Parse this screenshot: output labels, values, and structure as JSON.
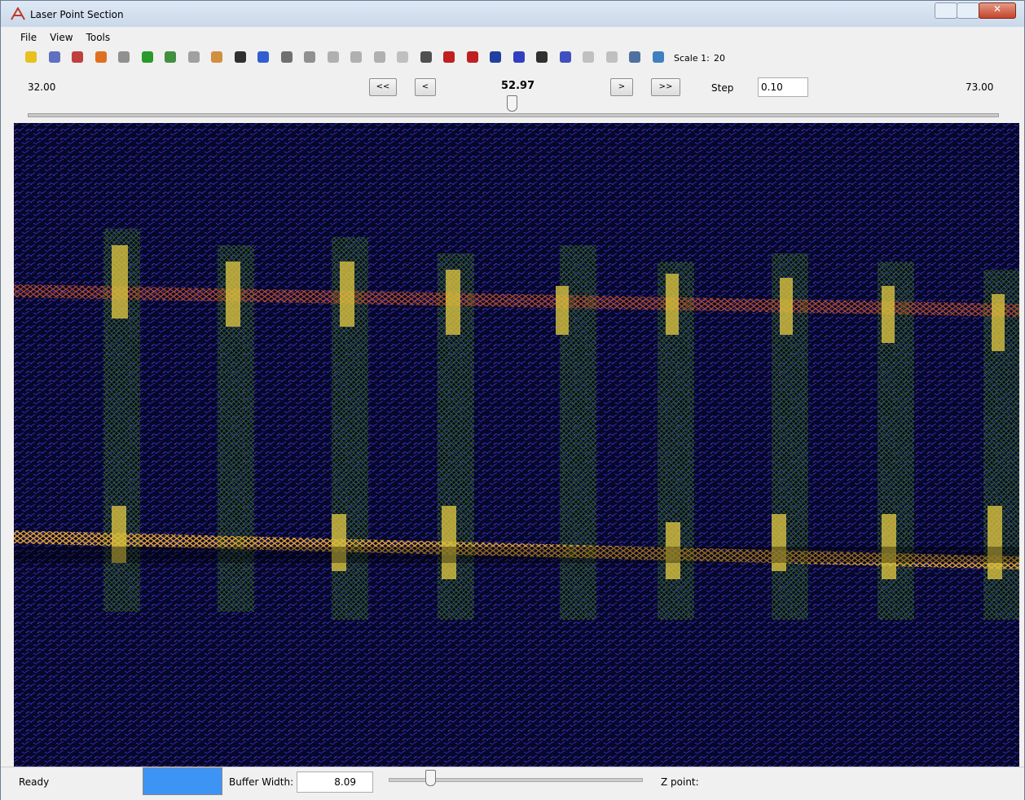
{
  "window": {
    "title": "Laser Point Section"
  },
  "menu": [
    "File",
    "View",
    "Tools"
  ],
  "toolbar": {
    "scale_label": "Scale 1:",
    "scale_value": "20"
  },
  "section_bar": {
    "min": "32.00",
    "buttons": [
      "<<",
      "<",
      ">",
      ">>"
    ],
    "current": "52.97",
    "step_label": "Step",
    "step_value": "0.10",
    "max": "73.00"
  },
  "status_bar": {
    "status": "Ready",
    "buffer_label": "Buffer Width:",
    "buffer_value": "8.09",
    "z_label": "Z point:"
  }
}
